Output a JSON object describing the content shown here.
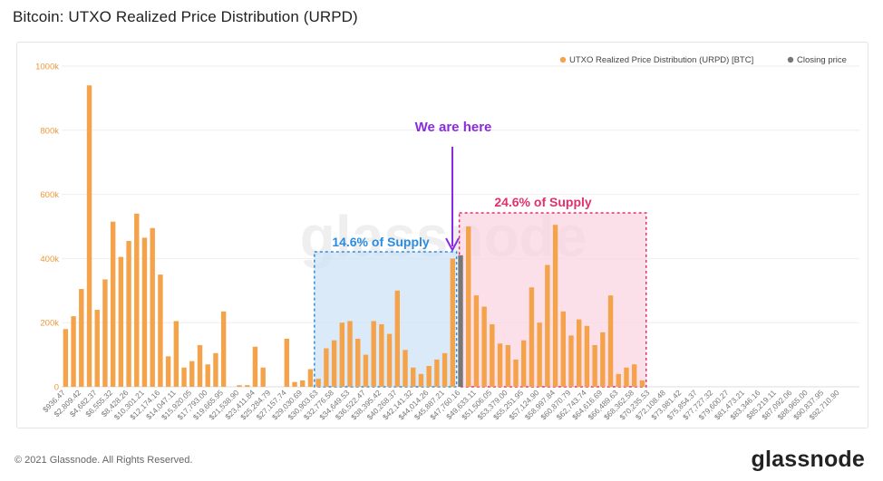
{
  "title": "Bitcoin: UTXO Realized Price Distribution (URPD)",
  "footer": {
    "copyright": "© 2021 Glassnode. All Rights Reserved.",
    "logo": "glassnode"
  },
  "watermark": "glassnode",
  "colors": {
    "bar": "#f5a34a",
    "closing": "#777777",
    "purple": "#8a2be2",
    "blue": "#2b8ce0",
    "pink": "#e0306e",
    "blue_fill": "#cfe3f6",
    "pink_fill": "#fbd3e0",
    "grid": "#eeeeee",
    "axis_text": "#f0963c"
  },
  "legend": [
    {
      "label": "UTXO Realized Price Distribution (URPD) [BTC]",
      "color": "#f5a34a"
    },
    {
      "label": "Closing price",
      "color": "#777777"
    }
  ],
  "annotations": {
    "we_are_here": "We are here",
    "left_supply": "14.6% of Supply",
    "right_supply": "24.6% of Supply"
  },
  "chart_data": {
    "type": "bar",
    "y_ticks": [
      "0",
      "200k",
      "400k",
      "600k",
      "800k",
      "1000k"
    ],
    "ylim": [
      0,
      1000000
    ],
    "grid": true,
    "legend_position": "top-right",
    "x_tick_labels": [
      "$936.47",
      "$2,809.42",
      "$4,682.37",
      "$6,555.32",
      "$8,428.26",
      "$10,301.21",
      "$12,174.16",
      "$14,047.11",
      "$15,920.05",
      "$17,793.00",
      "$19,665.95",
      "$21,538.90",
      "$23,411.84",
      "$25,284.79",
      "$27,157.74",
      "$29,030.69",
      "$30,903.63",
      "$32,776.58",
      "$34,649.53",
      "$36,522.47",
      "$38,395.42",
      "$40,268.37",
      "$42,141.32",
      "$44,014.26",
      "$45,887.21",
      "$47,760.16",
      "$49,633.11",
      "$51,506.05",
      "$53,379.00",
      "$55,251.95",
      "$57,124.90",
      "$58,997.84",
      "$60,870.79",
      "$62,743.74",
      "$64,616.69",
      "$66,489.63",
      "$68,362.58",
      "$70,235.53",
      "$72,108.48",
      "$73,981.42",
      "$75,854.37",
      "$77,727.32",
      "$79,600.27",
      "$81,473.21",
      "$83,346.16",
      "$85,219.11",
      "$87,092.06",
      "$88,965.00",
      "$90,837.95",
      "$92,710.90"
    ],
    "values": [
      180000,
      220000,
      305000,
      940000,
      240000,
      335000,
      515000,
      405000,
      455000,
      540000,
      465000,
      495000,
      350000,
      95000,
      205000,
      60000,
      80000,
      130000,
      70000,
      105000,
      235000,
      0,
      5000,
      5000,
      125000,
      60000,
      0,
      0,
      150000,
      15000,
      20000,
      55000,
      25000,
      120000,
      145000,
      200000,
      205000,
      150000,
      100000,
      205000,
      195000,
      165000,
      300000,
      115000,
      60000,
      40000,
      65000,
      85000,
      105000,
      400000,
      410000,
      500000,
      285000,
      250000,
      195000,
      135000,
      130000,
      85000,
      145000,
      310000,
      200000,
      380000,
      505000,
      235000,
      160000,
      210000,
      190000,
      130000,
      170000,
      285000,
      40000,
      60000,
      70000,
      20000,
      0,
      0,
      0,
      0,
      0,
      0,
      0,
      0,
      0,
      0,
      0,
      0,
      0,
      0,
      0,
      0,
      0,
      0,
      0,
      0,
      0,
      0,
      0,
      0,
      0,
      0,
      0
    ],
    "closing_price_index": 50
  }
}
